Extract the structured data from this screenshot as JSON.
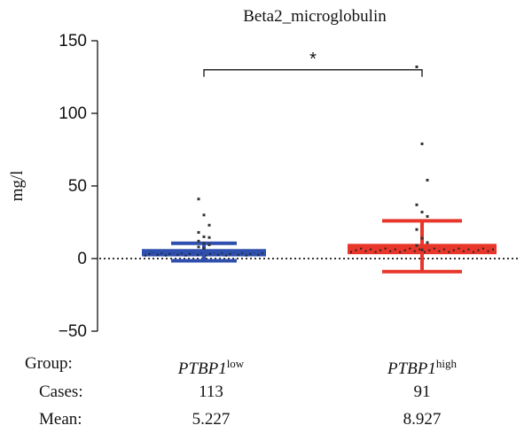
{
  "chart_data": {
    "type": "scatter",
    "title": "Beta2_microglobulin",
    "ylabel": "mg/l",
    "ylim": [
      -50,
      150
    ],
    "yticks": [
      -50,
      0,
      50,
      100,
      150
    ],
    "reference_line_y": 0,
    "significance": "*",
    "groups": [
      {
        "gene": "PTBP1",
        "level": "low",
        "cases": "113",
        "mean_label": "5.227",
        "mean": 5.227,
        "sd_upper": 10.5,
        "sd_lower": -1.5,
        "q1": 1.5,
        "q3": 6.5,
        "color": "#2f4fae",
        "outliers": [
          41,
          30,
          23,
          18,
          15,
          14.5,
          12,
          10.5,
          9.5,
          8,
          7
        ]
      },
      {
        "gene": "PTBP1",
        "level": "high",
        "cases": "91",
        "mean_label": "8.927",
        "mean": 8.927,
        "sd_upper": 26,
        "sd_lower": -9,
        "q1": 3,
        "q3": 10,
        "color": "#e8372a",
        "outliers": [
          132,
          79,
          54,
          37,
          32,
          29,
          20,
          14,
          11,
          9,
          6
        ]
      }
    ]
  },
  "table": {
    "group_label": "Group:",
    "cases_label": "Cases:",
    "mean_label": "Mean:"
  }
}
